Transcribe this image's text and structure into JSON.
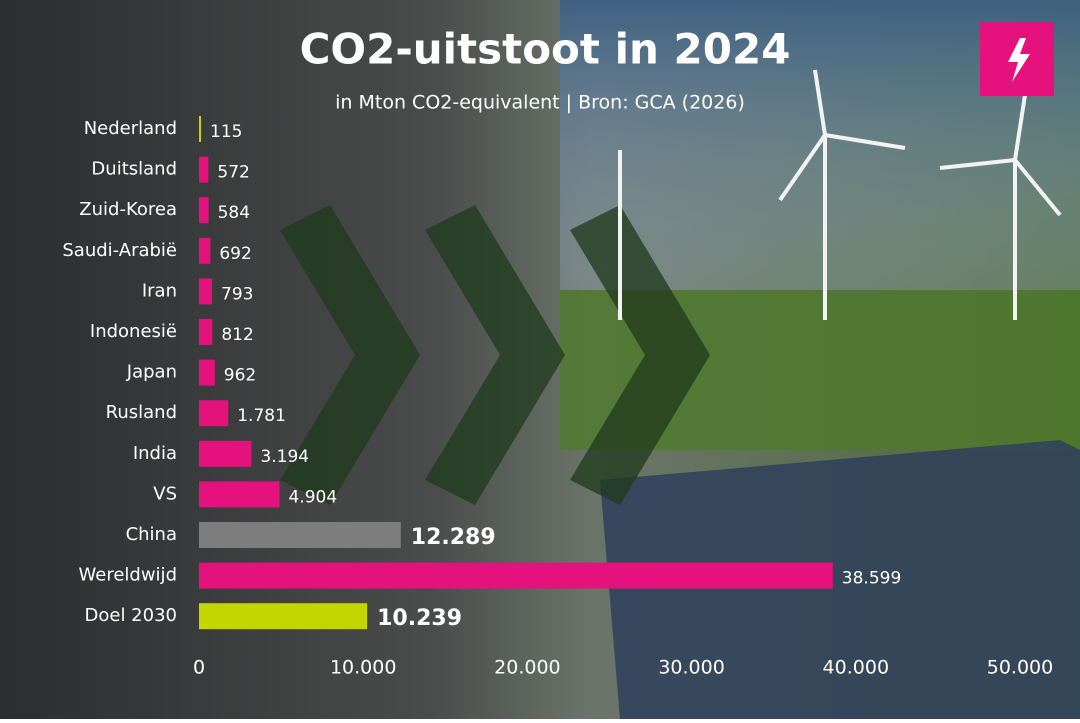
{
  "chart_data": {
    "type": "bar",
    "orientation": "horizontal",
    "title": "CO2-uitstoot in 2024",
    "subtitle": "in Mton CO2-equivalent | Bron: GCA (2026)",
    "categories": [
      "Nederland",
      "Duitsland",
      "Zuid-Korea",
      "Saudi-Arabië",
      "Iran",
      "Indonesië",
      "Japan",
      "Rusland",
      "India",
      "VS",
      "China",
      "Wereldwijd",
      "Doel 2030"
    ],
    "values": [
      115,
      572,
      584,
      692,
      793,
      812,
      962,
      1781,
      3194,
      4904,
      12289,
      38599,
      10239
    ],
    "value_labels": [
      "115",
      "572",
      "584",
      "692",
      "793",
      "812",
      "962",
      "1.781",
      "3.194",
      "4.904",
      "12.289",
      "38.599",
      "10.239"
    ],
    "colors": [
      "#c4d600",
      "#e5127d",
      "#e5127d",
      "#e5127d",
      "#e5127d",
      "#e5127d",
      "#e5127d",
      "#e5127d",
      "#e5127d",
      "#e5127d",
      "#7d7d7d",
      "#e5127d",
      "#c4d600"
    ],
    "value_label_bold": [
      false,
      false,
      false,
      false,
      false,
      false,
      false,
      false,
      false,
      false,
      true,
      false,
      true
    ],
    "xlim": [
      0,
      50000
    ],
    "xticks": [
      0,
      {
        "value": 10000,
        "label": "10.000"
      },
      {
        "value": 20000,
        "label": "20.000"
      },
      {
        "value": 30000,
        "label": "30.000"
      },
      {
        "value": 40000,
        "label": "40.000"
      },
      {
        "value": 50000,
        "label": "50.000"
      }
    ],
    "grid": false
  }
}
